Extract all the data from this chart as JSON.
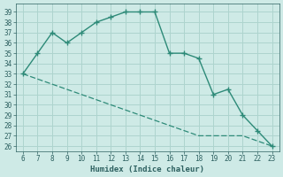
{
  "xlabel": "Humidex (Indice chaleur)",
  "x": [
    6,
    7,
    8,
    9,
    10,
    11,
    12,
    13,
    14,
    15,
    16,
    17,
    18,
    19,
    20,
    21,
    22,
    23
  ],
  "y_main": [
    33,
    35,
    37,
    36,
    37,
    38,
    38.5,
    39,
    39,
    39,
    35,
    35,
    34.5,
    31,
    31.5,
    29,
    27.5,
    26
  ],
  "y_lower": [
    33,
    32.5,
    32,
    31.5,
    31,
    30.5,
    30,
    29.5,
    29,
    28.5,
    28,
    27.5,
    27,
    27,
    27,
    27,
    26.5,
    26
  ],
  "line_color": "#2d8a78",
  "bg_color": "#ceeae6",
  "grid_color": "#aed4ce",
  "text_color": "#2d6060",
  "xlim": [
    5.5,
    23.5
  ],
  "ylim": [
    25.5,
    39.8
  ],
  "xticks": [
    6,
    7,
    8,
    9,
    10,
    11,
    12,
    13,
    14,
    15,
    16,
    17,
    18,
    19,
    20,
    21,
    22,
    23
  ],
  "yticks": [
    26,
    27,
    28,
    29,
    30,
    31,
    32,
    33,
    34,
    35,
    36,
    37,
    38,
    39
  ]
}
